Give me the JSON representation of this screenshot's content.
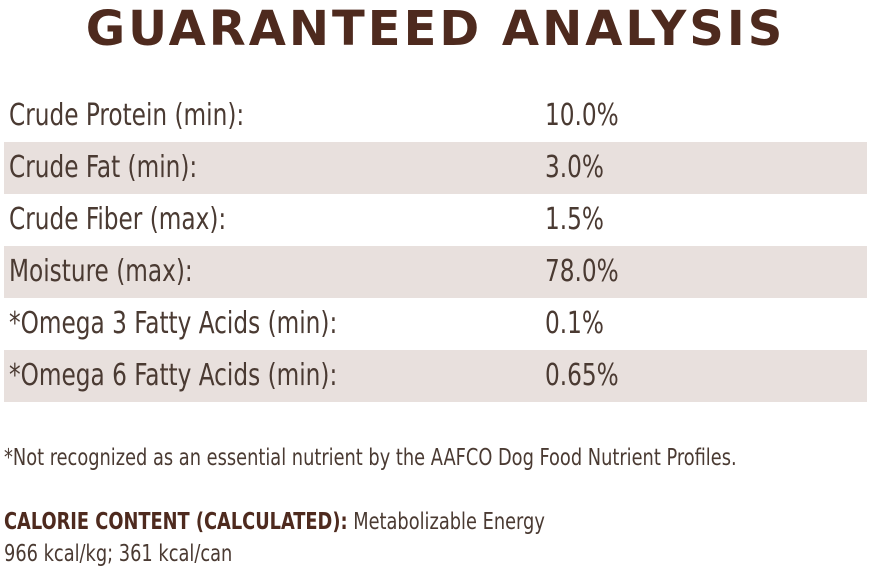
{
  "title": "GUARANTEED ANALYSIS",
  "analysis": [
    {
      "label": "Crude Protein (min):",
      "value": "10.0%"
    },
    {
      "label": "Crude Fat (min):",
      "value": "3.0%"
    },
    {
      "label": "Crude Fiber (max):",
      "value": "1.5%"
    },
    {
      "label": "Moisture (max):",
      "value": "78.0%"
    },
    {
      "label": "*Omega 3 Fatty Acids (min):",
      "value": "0.1%"
    },
    {
      "label": "*Omega 6 Fatty Acids (min):",
      "value": "0.65%"
    }
  ],
  "footnote": "*Not recognized as an essential nutrient by the AAFCO Dog Food Nutrient Profiles.",
  "calorie": {
    "label": "CALORIE CONTENT (CALCULATED):",
    "description": " Metabolizable Energy",
    "values": "966 kcal/kg; 361 kcal/can"
  },
  "colors": {
    "title": "#4e2a1e",
    "text": "#4a3a32",
    "row_shade": "#e8e0dd"
  }
}
